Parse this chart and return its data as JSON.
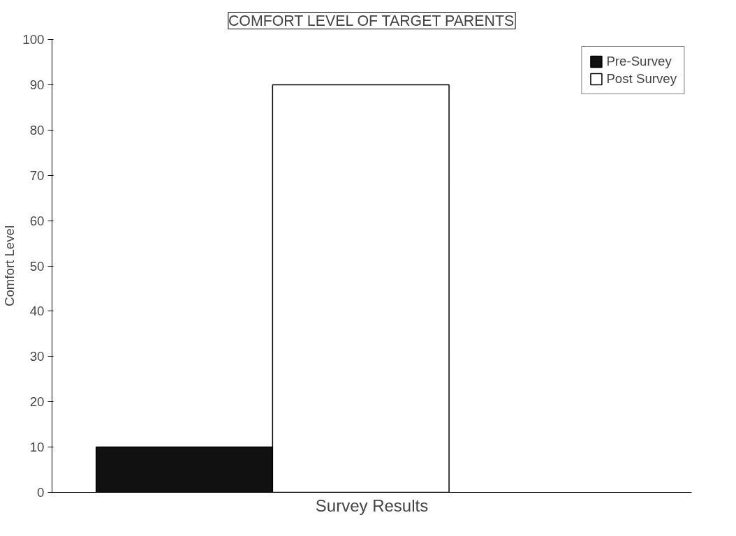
{
  "chart_data": {
    "type": "bar",
    "title": "COMFORT LEVEL OF TARGET PARENTS",
    "xlabel": "Survey Results",
    "ylabel": "Comfort Level",
    "categories": [
      null
    ],
    "series": [
      {
        "name": "Pre-Survey",
        "color": "#111111",
        "values": [
          10
        ]
      },
      {
        "name": "Post Survey",
        "color": "#ffffff",
        "values": [
          90
        ]
      }
    ],
    "ylim": [
      0,
      100
    ],
    "yticks": [
      0,
      10,
      20,
      30,
      40,
      50,
      60,
      70,
      80,
      90,
      100
    ],
    "grid": false,
    "legend": "top right"
  }
}
